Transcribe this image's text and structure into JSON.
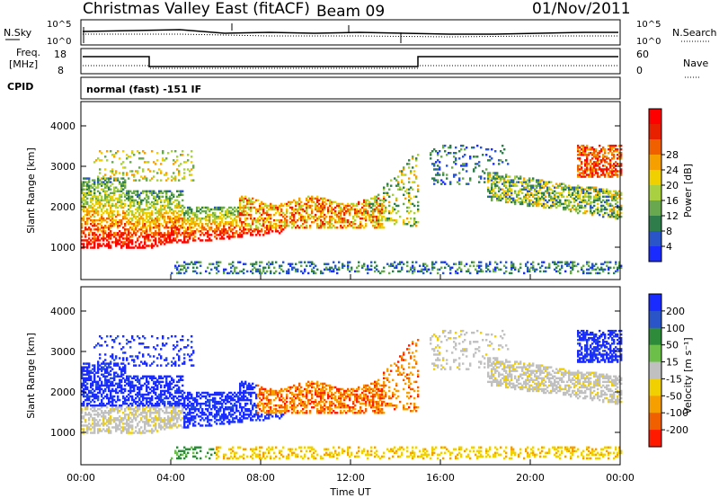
{
  "header": {
    "title": "Christmas Valley East (fitACF)",
    "beam": "Beam 09",
    "date": "01/Nov/2011"
  },
  "panels": {
    "nsky_label": "N.Sky",
    "nsearch_label": "N.Search",
    "nsky_ticks": [
      "10^5",
      "10^0"
    ],
    "nsearch_ticks": [
      "10^5",
      "10^0"
    ],
    "freq_label": "Freq.",
    "freq_unit": "[MHz]",
    "freq_ticks": [
      "18",
      "8"
    ],
    "nave_label": "Nave",
    "nave_ticks": [
      "60",
      "0"
    ],
    "cpid_label": "CPID",
    "cpid_text": "normal (fast) -151 IF"
  },
  "chart_data": [
    {
      "type": "heatmap",
      "name": "power",
      "ylabel": "Slant Range [km]",
      "xlabel": "Time UT",
      "x_ticks": [
        "00:00",
        "04:00",
        "08:00",
        "12:00",
        "16:00",
        "20:00",
        "00:00"
      ],
      "y_ticks": [
        "1000",
        "2000",
        "3000",
        "4000"
      ],
      "ylim": [
        200,
        4600
      ],
      "colorbar": {
        "label": "Power [dB]",
        "ticks": [
          "4",
          "8",
          "12",
          "16",
          "20",
          "24",
          "28"
        ],
        "colors": [
          "#1a2bff",
          "#2a55c8",
          "#2e7d4a",
          "#6aa84f",
          "#a8d040",
          "#f0d000",
          "#f5a000",
          "#f06000",
          "#e82000",
          "#ff0000"
        ]
      },
      "features": [
        {
          "desc": "F-region scatter 00:00-09:00",
          "t0": 0.0,
          "t1": 9.0,
          "r0": 900,
          "r1": 2600
        },
        {
          "desc": "band 08:00-13:30",
          "t0": 8.0,
          "t1": 13.5,
          "r0": 1500,
          "r1": 2200
        },
        {
          "desc": "near range ground echo",
          "t0": 4.0,
          "t1": 24.0,
          "r0": 250,
          "r1": 700
        },
        {
          "desc": "late scatter 18:00-24:00",
          "t0": 18.0,
          "t1": 24.0,
          "r0": 1700,
          "r1": 3500
        }
      ]
    },
    {
      "type": "heatmap",
      "name": "velocity",
      "ylabel": "Slant Range [km]",
      "xlabel": "Time UT",
      "x_ticks": [
        "00:00",
        "04:00",
        "08:00",
        "12:00",
        "16:00",
        "20:00",
        "00:00"
      ],
      "y_ticks": [
        "1000",
        "2000",
        "3000",
        "4000"
      ],
      "ylim": [
        200,
        4600
      ],
      "colorbar": {
        "label": "Velocity [m s⁻¹]",
        "ticks": [
          "200",
          "100",
          "50",
          "15",
          "-15",
          "-50",
          "-100",
          "-200"
        ],
        "colors": [
          "#1a2bff",
          "#2a55c8",
          "#2e8b3a",
          "#6cc04a",
          "#c0c0c0",
          "#f0d000",
          "#f5a000",
          "#f06000",
          "#ff1a00"
        ]
      }
    }
  ],
  "colors": {
    "ground_scatter": "#c0c0c0",
    "positive_velocity": "#1a2bff",
    "negative_velocity": "#f5a000"
  }
}
